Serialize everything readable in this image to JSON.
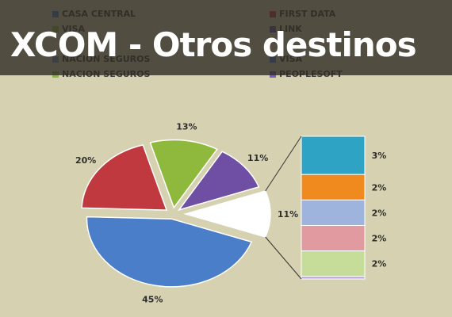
{
  "title": "XCOM - Otros destinos",
  "legend": [
    {
      "label": "CASA CENTRAL",
      "color": "#4a7ec9"
    },
    {
      "label": "FIRST DATA",
      "color": "#c0393f"
    },
    {
      "label": "VISA",
      "color": "#8fb93c"
    },
    {
      "label": "LINK",
      "color": "#6e4fa3"
    },
    {
      "label": "NACION SEGUROS",
      "color": "#6e90c6"
    },
    {
      "label": "VISA",
      "color": "#4a7ec9"
    },
    {
      "label": "NACION SEGUROS",
      "color": "#8fb93c"
    },
    {
      "label": "PEOPLESOFT",
      "color": "#7b5fb0"
    }
  ],
  "chart_data": {
    "type": "pie",
    "slices": [
      {
        "value": 45,
        "label": "45%",
        "color": "#4a7ec9"
      },
      {
        "value": 20,
        "label": "20%",
        "color": "#c0393f"
      },
      {
        "value": 13,
        "label": "13%",
        "color": "#8fb93c"
      },
      {
        "value": 11,
        "label": "11%",
        "color": "#6e4fa3"
      },
      {
        "value": 11,
        "label": "11%",
        "color": "#ffffff"
      }
    ],
    "breakdown": {
      "of_slice_value": 11,
      "segments": [
        {
          "value": 3,
          "label": "3%",
          "color": "#2fa3c4"
        },
        {
          "value": 2,
          "label": "2%",
          "color": "#f08a1f"
        },
        {
          "value": 2,
          "label": "2%",
          "color": "#9fb4dc"
        },
        {
          "value": 2,
          "label": "2%",
          "color": "#e09aa0"
        },
        {
          "value": 2,
          "label": "2%",
          "color": "#c6dd99"
        },
        {
          "value": 0.2,
          "label": "",
          "color": "#b8a6d8"
        }
      ]
    }
  }
}
